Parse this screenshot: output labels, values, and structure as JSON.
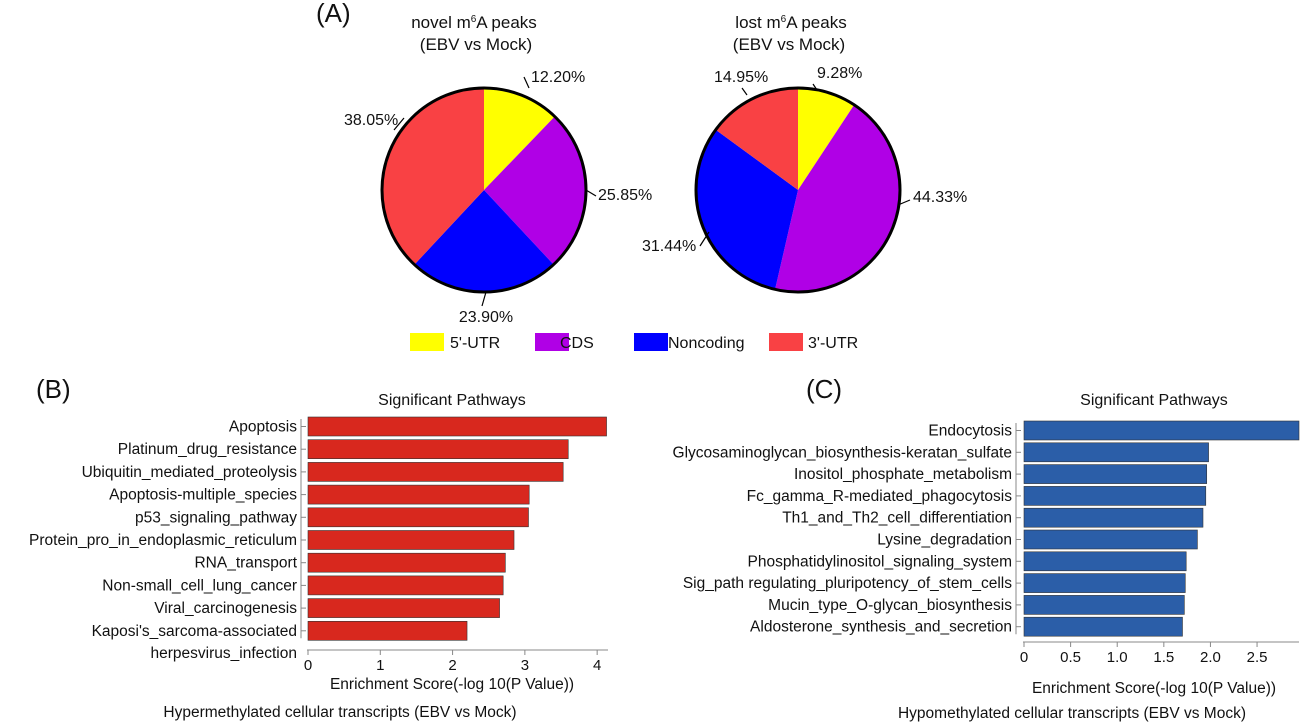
{
  "panel_labels": {
    "a": "(A)",
    "b": "(B)",
    "c": "(C)"
  },
  "legend": [
    {
      "label": "5'-UTR",
      "color": "#ffff00"
    },
    {
      "label": "CDS",
      "color": "#b000e6"
    },
    {
      "label": "Noncoding",
      "color": "#0000ff"
    },
    {
      "label": "3'-UTR",
      "color": "#f94144"
    }
  ],
  "chart_data": [
    {
      "type": "pie",
      "title_line1_pre": "novel m",
      "title_sup": "6",
      "title_line1_post": "A peaks",
      "title_line2": "(EBV vs Mock)",
      "slices": [
        {
          "label": "5'-UTR",
          "value": 12.2,
          "display": "12.20%",
          "color": "#ffff00"
        },
        {
          "label": "CDS",
          "value": 25.85,
          "display": "25.85%",
          "color": "#b000e6"
        },
        {
          "label": "Noncoding",
          "value": 23.9,
          "display": "23.90%",
          "color": "#0000ff"
        },
        {
          "label": "3'-UTR",
          "value": 38.05,
          "display": "38.05%",
          "color": "#f94144"
        }
      ]
    },
    {
      "type": "pie",
      "title_line1_pre": "lost m",
      "title_sup": "6",
      "title_line1_post": "A peaks",
      "title_line2": "(EBV vs Mock)",
      "slices": [
        {
          "label": "5'-UTR",
          "value": 9.28,
          "display": "9.28%",
          "color": "#ffff00"
        },
        {
          "label": "CDS",
          "value": 44.33,
          "display": "44.33%",
          "color": "#b000e6"
        },
        {
          "label": "Noncoding",
          "value": 31.44,
          "display": "31.44%",
          "color": "#0000ff"
        },
        {
          "label": "3'-UTR",
          "value": 14.95,
          "display": "14.95%",
          "color": "#f94144"
        }
      ]
    },
    {
      "type": "bar",
      "orientation": "horizontal",
      "title": "Significant Pathways",
      "xlabel": "Enrichment Score(-log 10(P Value))",
      "caption": "Hypermethylated cellular transcripts (EBV vs Mock)",
      "color": "#d8281e",
      "xlim": [
        0,
        4.15
      ],
      "xticks": [
        0,
        1,
        2,
        3,
        4
      ],
      "tick_labels": [
        "0",
        "1",
        "2",
        "3",
        "4"
      ],
      "categories": [
        [
          "Apoptosis"
        ],
        [
          "Platinum_drug_resistance"
        ],
        [
          "Ubiquitin_mediated_proteolysis"
        ],
        [
          "Apoptosis-multiple_species"
        ],
        [
          "p53_signaling_pathway"
        ],
        [
          "Protein_pro_in_endoplasmic_reticulum"
        ],
        [
          "RNA_transport"
        ],
        [
          "Non-small_cell_lung_cancer"
        ],
        [
          "Viral_carcinogenesis"
        ],
        [
          "Kaposi's_sarcoma-associated",
          "herpesvirus_infection"
        ]
      ],
      "values": [
        4.13,
        3.6,
        3.53,
        3.06,
        3.05,
        2.85,
        2.73,
        2.7,
        2.65,
        2.2
      ]
    },
    {
      "type": "bar",
      "orientation": "horizontal",
      "title": "Significant Pathways",
      "xlabel": "Enrichment Score(-log 10(P Value))",
      "caption": "Hypomethylated cellular transcripts (EBV vs Mock)",
      "color": "#2b5ea8",
      "xlim": [
        0,
        2.95
      ],
      "xticks": [
        0,
        0.5,
        1,
        1.5,
        2,
        2.5
      ],
      "tick_labels": [
        "0",
        "0.5",
        "1.0",
        "1.5",
        "2.0",
        "2.5"
      ],
      "categories": [
        [
          "Endocytosis"
        ],
        [
          "Glycosaminoglycan_biosynthesis-keratan_sulfate"
        ],
        [
          "Inositol_phosphate_metabolism"
        ],
        [
          "Fc_gamma_R-mediated_phagocytosis"
        ],
        [
          "Th1_and_Th2_cell_differentiation"
        ],
        [
          "Lysine_degradation"
        ],
        [
          "Phosphatidylinositol_signaling_system"
        ],
        [
          "Sig_path regulating_pluripotency_of_stem_cells"
        ],
        [
          "Mucin_type_O-glycan_biosynthesis"
        ],
        [
          "Aldosterone_synthesis_and_secretion"
        ]
      ],
      "values": [
        2.95,
        1.98,
        1.96,
        1.95,
        1.92,
        1.86,
        1.74,
        1.73,
        1.72,
        1.7
      ]
    }
  ]
}
